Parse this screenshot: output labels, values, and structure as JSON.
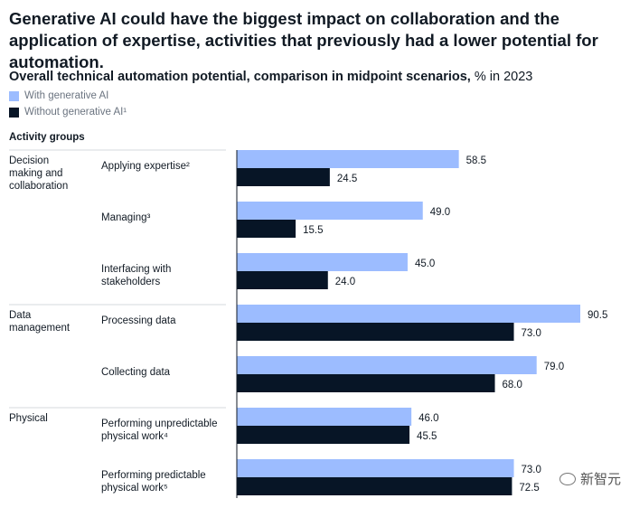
{
  "headline": "Generative AI could have the biggest impact on collaboration and the application of expertise, activities that previously had a lower potential for automation.",
  "subtitle_bold": "Overall technical automation potential, comparison in midpoint scenarios,",
  "subtitle_rest": " % in 2023",
  "group_header": "Activity groups",
  "watermark": "新智元",
  "colors": {
    "with_ai": "#9cbcff",
    "without_ai": "#071526",
    "divider": "#d6d9dc"
  },
  "chart_data": {
    "type": "bar",
    "orientation": "horizontal",
    "xlim": [
      0,
      90.5
    ],
    "series": [
      {
        "name": "With generative AI",
        "color": "#9cbcff",
        "values": [
          58.5,
          49.0,
          45.0,
          90.5,
          79.0,
          46.0,
          73.0
        ]
      },
      {
        "name": "Without generative AI¹",
        "color": "#071526",
        "values": [
          24.5,
          15.5,
          24.0,
          73.0,
          68.0,
          45.5,
          72.5
        ]
      }
    ],
    "groups": [
      {
        "label": "Decision\nmaking and\ncollaboration",
        "categories": [
          {
            "label": "Applying expertise²",
            "values": [
              58.5,
              24.5
            ]
          },
          {
            "label": "Managing³",
            "values": [
              49.0,
              15.5
            ]
          },
          {
            "label": "Interfacing with\nstakeholders",
            "values": [
              45.0,
              24.0
            ]
          }
        ]
      },
      {
        "label": "Data\nmanagement",
        "categories": [
          {
            "label": "Processing data",
            "values": [
              90.5,
              73.0
            ]
          },
          {
            "label": "Collecting data",
            "values": [
              79.0,
              68.0
            ]
          }
        ]
      },
      {
        "label": "Physical",
        "categories": [
          {
            "label": "Performing unpredictable\nphysical work⁴",
            "values": [
              46.0,
              45.5
            ]
          },
          {
            "label": "Performing predictable\nphysical work⁵",
            "values": [
              73.0,
              72.5
            ]
          }
        ]
      }
    ]
  }
}
